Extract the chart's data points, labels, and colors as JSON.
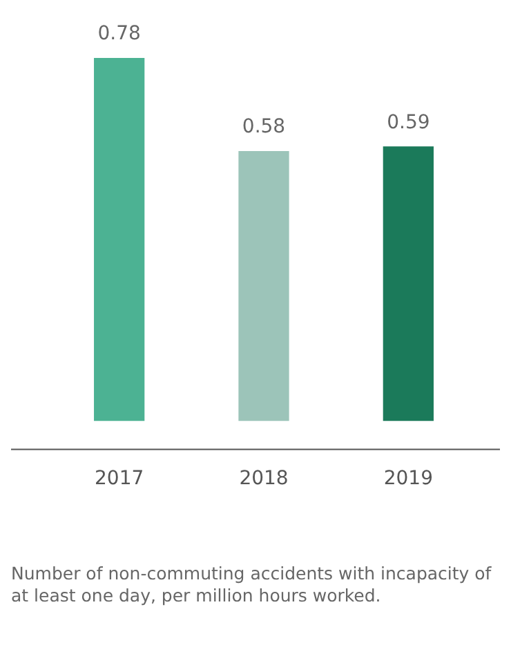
{
  "chart_data": {
    "type": "bar",
    "categories": [
      "2017",
      "2018",
      "2019"
    ],
    "values": [
      0.78,
      0.58,
      0.59
    ],
    "colors": [
      "#4cb293",
      "#9cc4b9",
      "#1b7a5a"
    ],
    "data_labels": true,
    "grid": false,
    "legend": false,
    "annotations": [
      "Number of non-commuting accidents with incapacity of at least one day, per million hours worked."
    ]
  }
}
